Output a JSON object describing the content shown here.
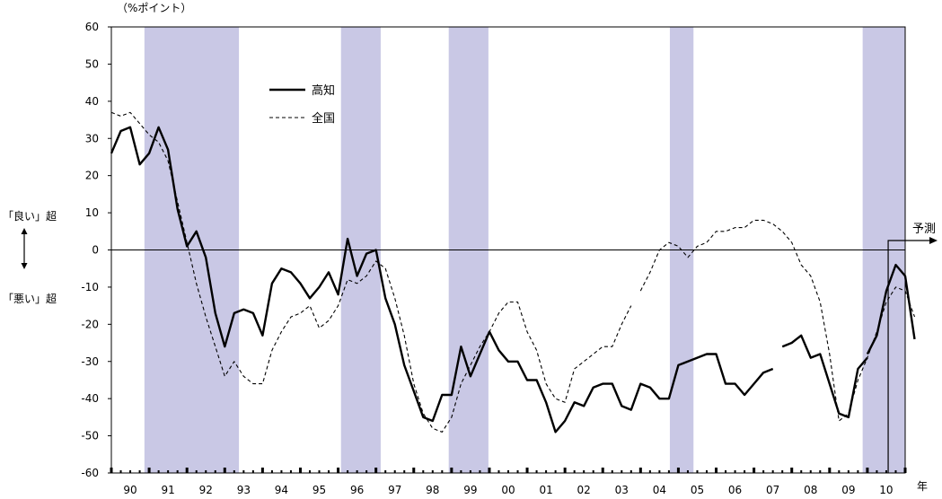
{
  "chart_data": {
    "type": "line",
    "unit_label": "（%ポイント）",
    "x_unit_label": "年",
    "forecast_label": "予測",
    "upper_label": "「良い」超",
    "lower_label": "「悪い」超",
    "ylim": [
      -60,
      60
    ],
    "yticks": [
      60,
      50,
      40,
      30,
      20,
      10,
      0,
      -10,
      -20,
      -30,
      -40,
      -50,
      -60
    ],
    "xlim": [
      0,
      84
    ],
    "categories": [
      "90",
      "91",
      "92",
      "93",
      "94",
      "95",
      "96",
      "97",
      "98",
      "99",
      "00",
      "01",
      "02",
      "03",
      "04",
      "05",
      "06",
      "07",
      "08",
      "09",
      "10"
    ],
    "shaded_periods": [
      [
        3.5,
        13.5
      ],
      [
        24.3,
        28.5
      ],
      [
        35.7,
        39.9
      ],
      [
        59.1,
        61.6
      ],
      [
        79.5,
        84.0
      ]
    ],
    "forecast_x": 82.2,
    "legend": {
      "placement": "top-left",
      "entries": [
        "高知",
        "全国"
      ]
    },
    "series": [
      {
        "name": "高知",
        "style": "solid",
        "segments": [
          [
            [
              0,
              26
            ],
            [
              1,
              32
            ],
            [
              2,
              33
            ],
            [
              3,
              23
            ],
            [
              4,
              26
            ],
            [
              5,
              33
            ],
            [
              6,
              27
            ],
            [
              7,
              11
            ],
            [
              8,
              1
            ],
            [
              9,
              5
            ],
            [
              10,
              -2
            ],
            [
              11,
              -17
            ],
            [
              12,
              -26
            ],
            [
              13,
              -17
            ],
            [
              14,
              -16
            ],
            [
              15,
              -17
            ],
            [
              16,
              -23
            ],
            [
              17,
              -9
            ],
            [
              18,
              -5
            ],
            [
              19,
              -6
            ],
            [
              20,
              -9
            ],
            [
              21,
              -13
            ],
            [
              22,
              -10
            ],
            [
              23,
              -6
            ],
            [
              24,
              -12
            ],
            [
              25,
              3
            ],
            [
              26,
              -7
            ],
            [
              27,
              -1
            ],
            [
              28,
              0
            ],
            [
              29,
              -13
            ],
            [
              30,
              -20
            ],
            [
              31,
              -31
            ],
            [
              32,
              -38
            ],
            [
              33,
              -45
            ],
            [
              34,
              -46
            ],
            [
              35,
              -39
            ],
            [
              36,
              -39
            ],
            [
              37,
              -26
            ],
            [
              38,
              -34
            ],
            [
              39,
              -28
            ],
            [
              40,
              -22
            ],
            [
              41,
              -27
            ],
            [
              42,
              -30
            ],
            [
              43,
              -30
            ],
            [
              44,
              -35
            ],
            [
              45,
              -35
            ],
            [
              46,
              -41
            ],
            [
              47,
              -49
            ],
            [
              48,
              -46
            ],
            [
              49,
              -41
            ],
            [
              50,
              -42
            ],
            [
              51,
              -37
            ],
            [
              52,
              -36
            ],
            [
              53,
              -36
            ],
            [
              54,
              -42
            ],
            [
              55,
              -43
            ],
            [
              56,
              -36
            ],
            [
              57,
              -37
            ],
            [
              58,
              -40
            ],
            [
              59,
              -40
            ],
            [
              60,
              -31
            ],
            [
              61,
              -30
            ],
            [
              62,
              -29
            ],
            [
              63,
              -28
            ],
            [
              64,
              -28
            ],
            [
              65,
              -36
            ],
            [
              66,
              -36
            ],
            [
              67,
              -39
            ],
            [
              68,
              -36
            ],
            [
              69,
              -33
            ],
            [
              70,
              -32
            ]
          ],
          [
            [
              71,
              -26
            ],
            [
              72,
              -25
            ],
            [
              73,
              -23
            ],
            [
              74,
              -29
            ],
            [
              75,
              -28
            ],
            [
              76,
              -36
            ],
            [
              77,
              -44
            ],
            [
              78,
              -45
            ],
            [
              79,
              -32
            ],
            [
              80,
              -29
            ]
          ],
          [
            [
              80,
              -28
            ],
            [
              81,
              -23
            ],
            [
              82,
              -11
            ],
            [
              83,
              -4
            ],
            [
              84,
              -7
            ],
            [
              85,
              -24
            ]
          ]
        ]
      },
      {
        "name": "全国",
        "style": "dashed",
        "segments": [
          [
            [
              0,
              37
            ],
            [
              1,
              36
            ],
            [
              2,
              37
            ],
            [
              3,
              34
            ],
            [
              4,
              31
            ],
            [
              5,
              29
            ],
            [
              6,
              24
            ],
            [
              7,
              13
            ],
            [
              8,
              2
            ],
            [
              9,
              -9
            ],
            [
              10,
              -18
            ],
            [
              11,
              -26
            ],
            [
              12,
              -34
            ],
            [
              13,
              -30
            ],
            [
              14,
              -34
            ],
            [
              15,
              -36
            ],
            [
              16,
              -36
            ],
            [
              17,
              -27
            ],
            [
              18,
              -22
            ],
            [
              19,
              -18
            ],
            [
              20,
              -17
            ],
            [
              21,
              -15
            ],
            [
              22,
              -21
            ],
            [
              23,
              -19
            ],
            [
              24,
              -15
            ],
            [
              25,
              -8
            ],
            [
              26,
              -9
            ],
            [
              27,
              -7
            ],
            [
              28,
              -3
            ],
            [
              29,
              -5
            ],
            [
              30,
              -13
            ],
            [
              31,
              -23
            ],
            [
              32,
              -36
            ],
            [
              33,
              -44
            ],
            [
              34,
              -48
            ],
            [
              35,
              -49
            ],
            [
              36,
              -45
            ],
            [
              37,
              -36
            ],
            [
              38,
              -31
            ],
            [
              39,
              -26
            ],
            [
              40,
              -22
            ],
            [
              41,
              -17
            ],
            [
              42,
              -14
            ],
            [
              43,
              -14
            ],
            [
              44,
              -22
            ],
            [
              45,
              -27
            ],
            [
              46,
              -36
            ],
            [
              47,
              -40
            ],
            [
              48,
              -41
            ],
            [
              49,
              -32
            ],
            [
              50,
              -30
            ],
            [
              51,
              -28
            ],
            [
              52,
              -26
            ],
            [
              53,
              -26
            ],
            [
              54,
              -20
            ],
            [
              55,
              -15
            ]
          ],
          [
            [
              56,
              -11
            ],
            [
              57,
              -6
            ],
            [
              58,
              0
            ],
            [
              59,
              2
            ],
            [
              60,
              1
            ],
            [
              61,
              -2
            ],
            [
              62,
              1
            ],
            [
              63,
              2
            ],
            [
              64,
              5
            ],
            [
              65,
              5
            ],
            [
              66,
              6
            ],
            [
              67,
              6
            ],
            [
              68,
              8
            ],
            [
              69,
              8
            ],
            [
              70,
              7
            ],
            [
              71,
              5
            ],
            [
              72,
              2
            ],
            [
              73,
              -4
            ],
            [
              74,
              -7
            ],
            [
              75,
              -14
            ],
            [
              76,
              -28
            ],
            [
              77,
              -46
            ],
            [
              78,
              -44
            ],
            [
              79,
              -35
            ],
            [
              80,
              -29
            ],
            [
              81,
              -22
            ],
            [
              82,
              -14
            ],
            [
              83,
              -10
            ],
            [
              84,
              -11
            ],
            [
              85,
              -18
            ]
          ]
        ]
      }
    ]
  }
}
